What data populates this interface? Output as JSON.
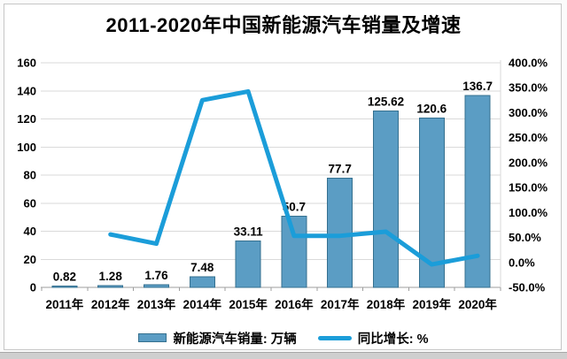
{
  "chart": {
    "title": "2011-2020年中国新能源汽车销量及增速"
  },
  "chart_data": {
    "type": "bar",
    "subtype": "combo-bar-line-dual-axis",
    "title": "2011-2020年中国新能源汽车销量及增速",
    "categories": [
      "2011年",
      "2012年",
      "2013年",
      "2014年",
      "2015年",
      "2016年",
      "2017年",
      "2018年",
      "2019年",
      "2020年"
    ],
    "series": [
      {
        "name": "新能源汽车销量: 万辆",
        "type": "bar",
        "axis": "left",
        "values": [
          0.82,
          1.28,
          1.76,
          7.48,
          33.11,
          50.7,
          77.7,
          125.62,
          120.6,
          136.7
        ],
        "labels": [
          "0.82",
          "1.28",
          "1.76",
          "7.48",
          "33.11",
          "50.7",
          "77.7",
          "125.62",
          "120.6",
          "136.7"
        ],
        "fill": "#5b9dc4",
        "stroke": "#35708f"
      },
      {
        "name": "同比增长: %",
        "type": "line",
        "axis": "right",
        "values": [
          null,
          56.1,
          37.5,
          325.0,
          342.6,
          53.1,
          53.3,
          61.7,
          -4.0,
          13.3
        ],
        "color": "#1b9dd9"
      }
    ],
    "left_axis": {
      "min": 0,
      "max": 160,
      "step": 20,
      "ticks": [
        "0",
        "20",
        "40",
        "60",
        "80",
        "100",
        "120",
        "140",
        "160"
      ]
    },
    "right_axis": {
      "min": -50,
      "max": 400,
      "step": 50,
      "ticks": [
        "-50.0%",
        "0.0%",
        "50.0%",
        "100.0%",
        "150.0%",
        "200.0%",
        "250.0%",
        "300.0%",
        "350.0%",
        "400.0%"
      ]
    },
    "grid": true,
    "legend_position": "bottom",
    "colors": {
      "grid": "#dadada",
      "axis": "#9e9e9e",
      "text": "#000000"
    }
  }
}
